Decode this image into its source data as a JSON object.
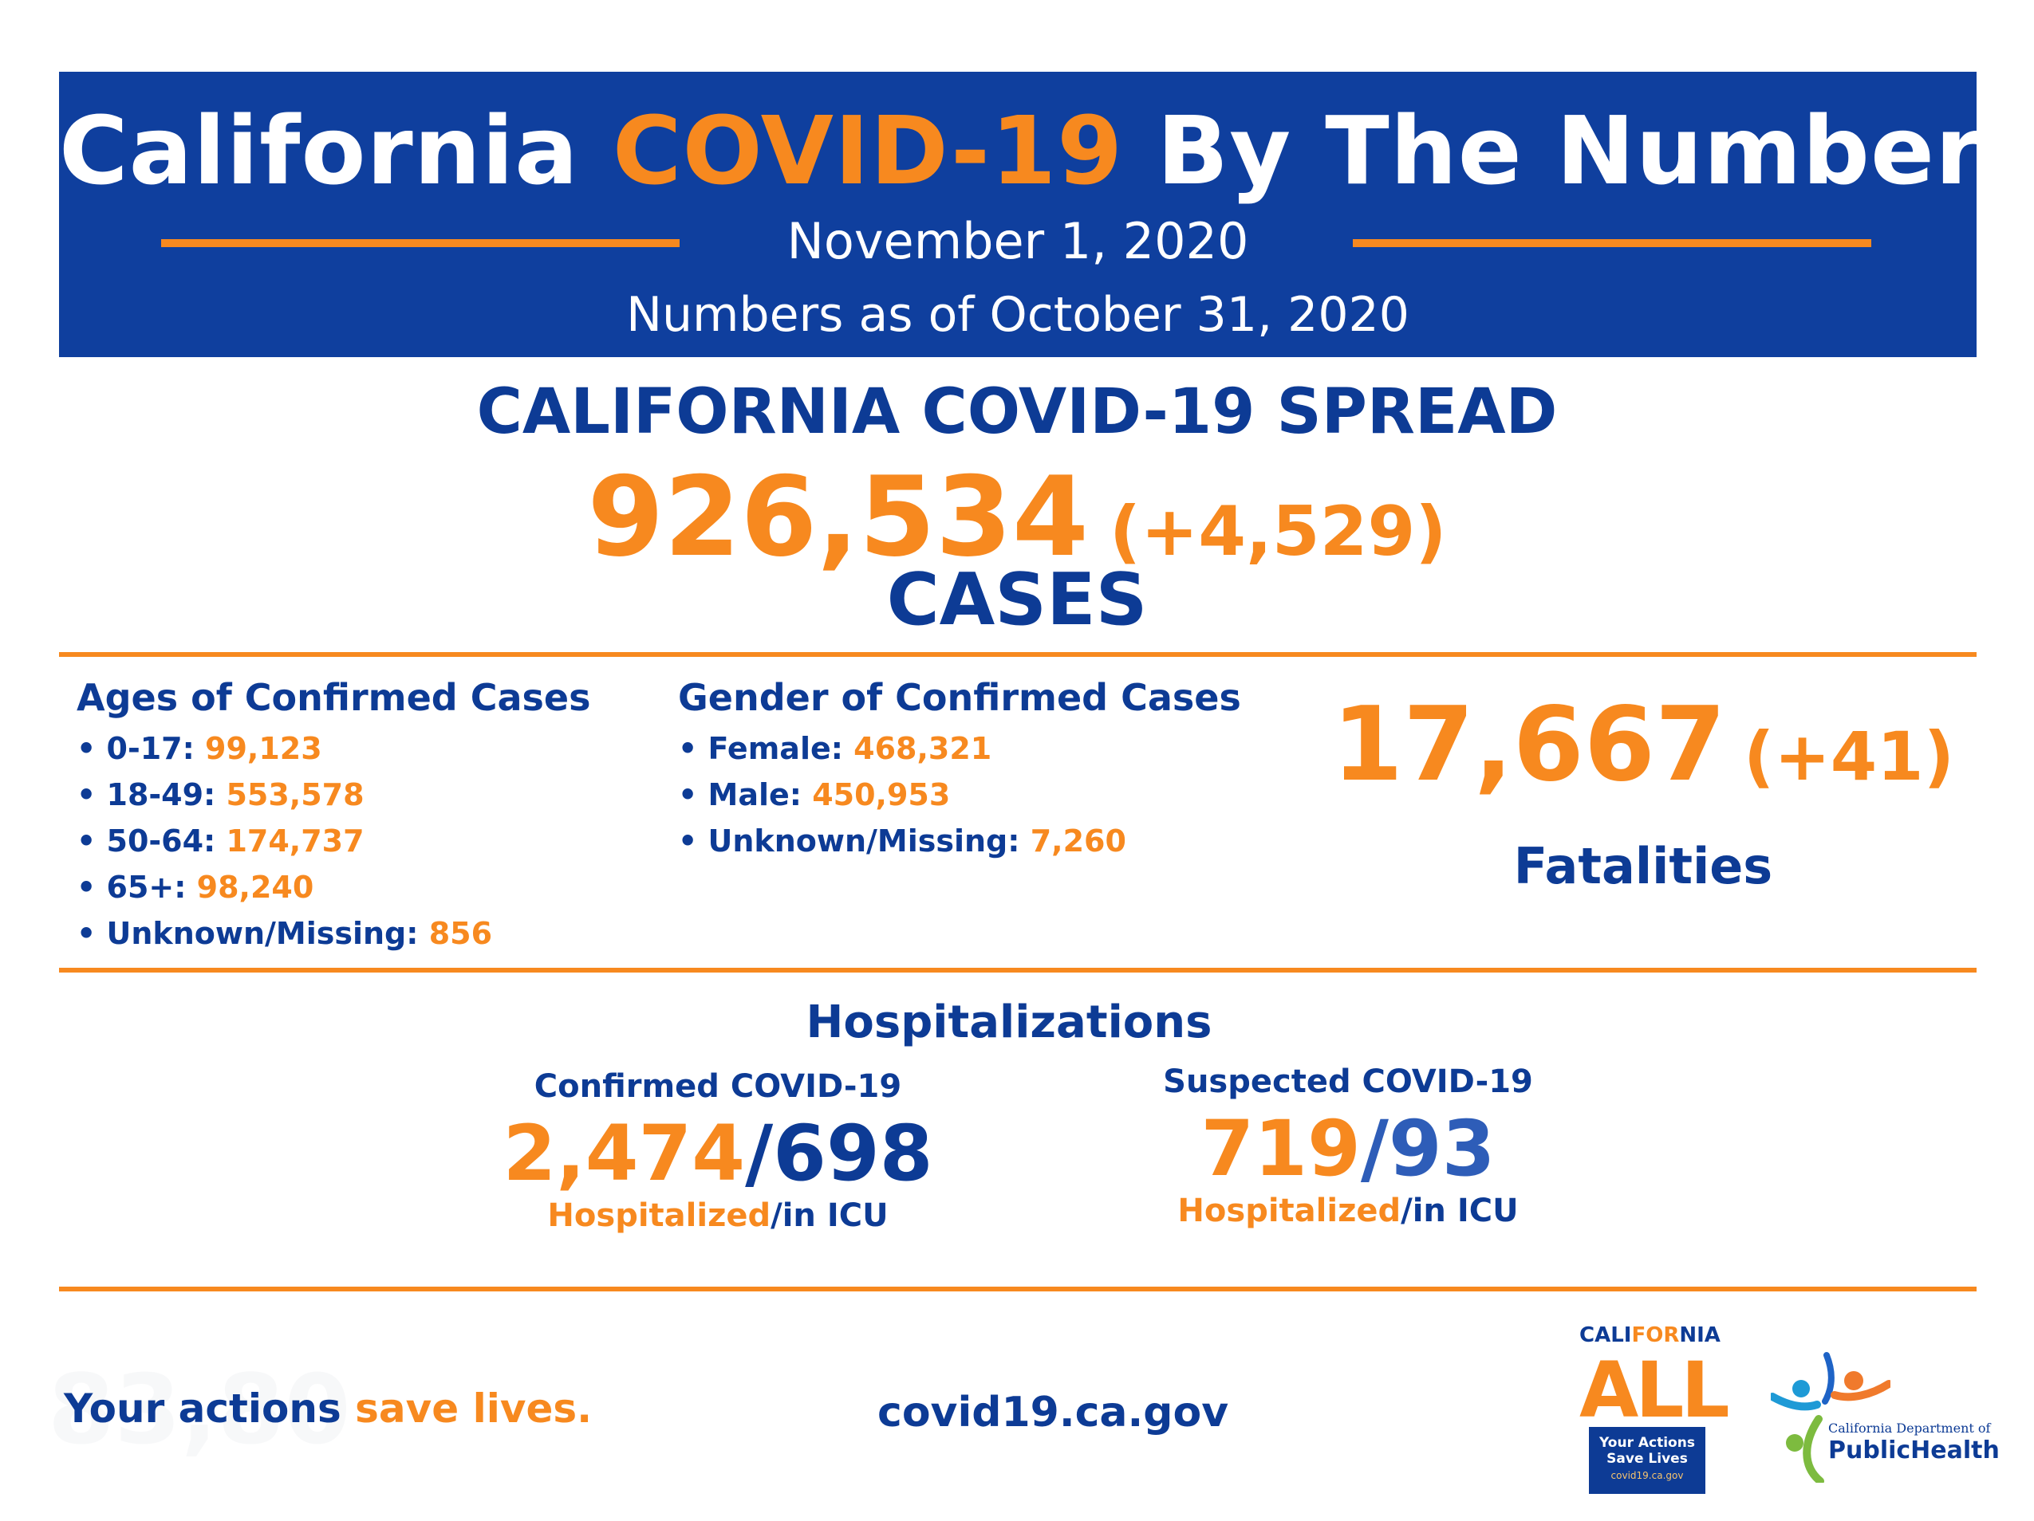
{
  "header": {
    "title_prefix": "California ",
    "title_highlight": "COVID-19",
    "title_suffix": " By The Numbers",
    "date": "November 1, 2020",
    "numbers_as_of": "Numbers as of October 31, 2020"
  },
  "spread": {
    "title": "CALIFORNIA COVID-19 SPREAD",
    "cases_total": "926,534",
    "cases_change": "(+4,529)",
    "cases_label": "CASES"
  },
  "ages": {
    "heading": "Ages of Confirmed Cases",
    "items": [
      {
        "label": "• 0-17: ",
        "value": "99,123"
      },
      {
        "label": "• 18-49: ",
        "value": "553,578"
      },
      {
        "label": "• 50-64: ",
        "value": "174,737"
      },
      {
        "label": "• 65+: ",
        "value": "98,240"
      },
      {
        "label": "• Unknown/Missing: ",
        "value": "856"
      }
    ]
  },
  "gender": {
    "heading": "Gender of Confirmed Cases",
    "items": [
      {
        "label": "• Female: ",
        "value": "468,321"
      },
      {
        "label": "• Male: ",
        "value": "450,953"
      },
      {
        "label": "• Unknown/Missing: ",
        "value": "7,260"
      }
    ]
  },
  "fatalities": {
    "total": "17,667",
    "change": "(+41)",
    "label": "Fatalities"
  },
  "hospitalizations": {
    "title": "Hospitalizations",
    "confirmed": {
      "label": "Confirmed COVID-19",
      "hospitalized": "2,474",
      "icu": "/698",
      "caption_hospitalized": "Hospitalized",
      "caption_icu": "/in ICU"
    },
    "suspected": {
      "label": "Suspected COVID-19",
      "hospitalized": "719",
      "icu": "/93",
      "caption_hospitalized": "Hospitalized",
      "caption_icu": "/in ICU"
    }
  },
  "footer": {
    "tagline_prefix": "Your actions ",
    "tagline_highlight": "save lives.",
    "url": "covid19.ca.gov",
    "ghost_text": "83,80"
  },
  "logos": {
    "california_all": {
      "word_a": "CALI",
      "word_b": "FOR",
      "word_c": "NIA",
      "all": "ALL",
      "line1": "Your Actions",
      "line2": "Save Lives",
      "line3": "covid19.ca.gov"
    },
    "cdph": {
      "line1": "California Department of",
      "line2": "PublicHealth"
    }
  },
  "colors": {
    "brand_blue": "#0f3f9e",
    "text_blue": "#0d3b95",
    "accent_orange": "#f7891f"
  }
}
